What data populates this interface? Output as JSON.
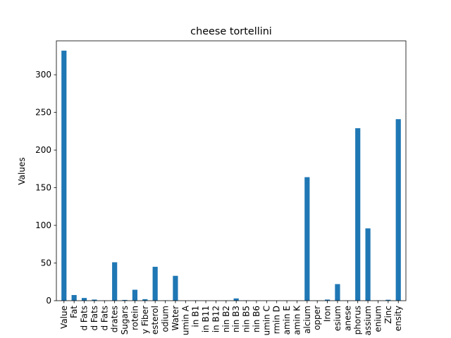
{
  "chart_data": {
    "type": "bar",
    "title": "cheese tortellini",
    "xlabel": "",
    "ylabel": "Values",
    "ylim": [
      0,
      345
    ],
    "yticks": [
      0,
      50,
      100,
      150,
      200,
      250,
      300
    ],
    "grid": false,
    "legend": "none",
    "bar_color": "#1f77b4",
    "categories": [
      "Value",
      "Fat",
      "d Fats",
      "d Fats",
      "d Fats",
      "drates",
      "Sugars",
      "rotein",
      "y Fiber",
      "esterol",
      "odium",
      "Water",
      "umin A",
      "in B1",
      "in B11",
      "in B12",
      "nin B2",
      "nin B3",
      "nin B5",
      "nin B6",
      "umin C",
      "rmin D",
      "amin E",
      "amin K",
      "alcium",
      "opper",
      "Iron",
      "esium",
      "anese",
      "phorus",
      "assium",
      "enium",
      "Zinc",
      "ensity"
    ],
    "values": [
      332,
      7.5,
      3.6,
      1.5,
      0.3,
      51,
      1,
      14.5,
      2,
      45,
      0.4,
      33,
      0,
      0.3,
      0,
      0,
      0.2,
      3,
      0.3,
      0.1,
      0,
      0,
      0.1,
      0,
      164,
      0.2,
      1.5,
      22,
      0.3,
      229,
      96,
      0.3,
      1.2,
      241
    ]
  }
}
